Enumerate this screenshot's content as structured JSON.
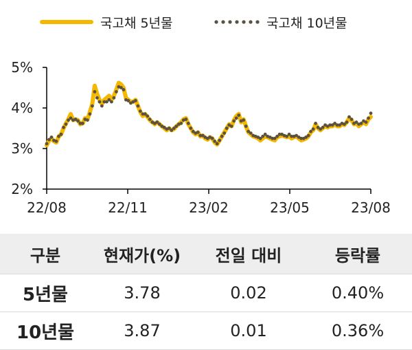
{
  "legend": [
    {
      "name": "국고채 5년물",
      "style": "line",
      "color": "#f5b800"
    },
    {
      "name": "국고채 10년물",
      "style": "dots",
      "color": "#5b5141"
    }
  ],
  "chart_data": {
    "type": "line",
    "x_ticks": [
      "22/08",
      "22/11",
      "23/02",
      "23/05",
      "23/08"
    ],
    "y_ticks": [
      "2%",
      "3%",
      "4%",
      "5%"
    ],
    "ylim": [
      2,
      5
    ],
    "series": [
      {
        "name": "국고채 5년물",
        "color": "#f5b800",
        "values": [
          3.08,
          3.2,
          3.25,
          3.18,
          3.15,
          3.3,
          3.35,
          3.5,
          3.62,
          3.72,
          3.85,
          3.7,
          3.72,
          3.7,
          3.6,
          3.62,
          3.75,
          3.72,
          3.9,
          4.1,
          4.55,
          4.35,
          4.2,
          4.1,
          4.2,
          4.25,
          4.3,
          4.2,
          4.3,
          4.45,
          4.62,
          4.58,
          4.5,
          4.25,
          4.2,
          4.15,
          4.15,
          4.2,
          4.05,
          3.9,
          3.8,
          3.85,
          3.78,
          3.7,
          3.65,
          3.6,
          3.65,
          3.6,
          3.55,
          3.5,
          3.45,
          3.5,
          3.45,
          3.48,
          3.55,
          3.6,
          3.65,
          3.72,
          3.75,
          3.6,
          3.5,
          3.4,
          3.35,
          3.4,
          3.3,
          3.32,
          3.25,
          3.22,
          3.28,
          3.25,
          3.15,
          3.1,
          3.2,
          3.3,
          3.4,
          3.5,
          3.6,
          3.55,
          3.7,
          3.8,
          3.85,
          3.65,
          3.72,
          3.55,
          3.4,
          3.35,
          3.3,
          3.28,
          3.25,
          3.2,
          3.25,
          3.3,
          3.28,
          3.25,
          3.22,
          3.2,
          3.28,
          3.3,
          3.32,
          3.3,
          3.28,
          3.3,
          3.25,
          3.28,
          3.3,
          3.25,
          3.2,
          3.22,
          3.25,
          3.3,
          3.4,
          3.45,
          3.6,
          3.5,
          3.45,
          3.5,
          3.55,
          3.52,
          3.55,
          3.55,
          3.6,
          3.55,
          3.55,
          3.6,
          3.58,
          3.65,
          3.75,
          3.7,
          3.6,
          3.62,
          3.55,
          3.6,
          3.65,
          3.6,
          3.72,
          3.78
        ]
      },
      {
        "name": "국고채 10년물",
        "color": "#5b5141",
        "values": [
          3.12,
          3.22,
          3.28,
          3.2,
          3.18,
          3.3,
          3.35,
          3.52,
          3.6,
          3.7,
          3.75,
          3.7,
          3.72,
          3.68,
          3.62,
          3.62,
          3.72,
          3.7,
          3.85,
          4.05,
          4.4,
          4.25,
          4.15,
          4.05,
          4.15,
          4.15,
          4.2,
          4.15,
          4.25,
          4.4,
          4.52,
          4.5,
          4.45,
          4.2,
          4.18,
          4.12,
          4.15,
          4.18,
          4.05,
          3.92,
          3.85,
          3.85,
          3.8,
          3.72,
          3.65,
          3.62,
          3.65,
          3.6,
          3.55,
          3.52,
          3.48,
          3.5,
          3.45,
          3.5,
          3.55,
          3.6,
          3.62,
          3.7,
          3.72,
          3.62,
          3.5,
          3.42,
          3.38,
          3.4,
          3.32,
          3.32,
          3.28,
          3.25,
          3.28,
          3.25,
          3.18,
          3.12,
          3.2,
          3.3,
          3.38,
          3.5,
          3.58,
          3.55,
          3.68,
          3.75,
          3.82,
          3.68,
          3.7,
          3.55,
          3.42,
          3.38,
          3.32,
          3.3,
          3.28,
          3.25,
          3.3,
          3.35,
          3.3,
          3.28,
          3.25,
          3.25,
          3.3,
          3.35,
          3.35,
          3.32,
          3.3,
          3.35,
          3.3,
          3.3,
          3.32,
          3.28,
          3.25,
          3.25,
          3.28,
          3.32,
          3.42,
          3.48,
          3.62,
          3.52,
          3.48,
          3.52,
          3.58,
          3.55,
          3.58,
          3.58,
          3.62,
          3.58,
          3.58,
          3.62,
          3.6,
          3.65,
          3.78,
          3.72,
          3.62,
          3.65,
          3.6,
          3.62,
          3.68,
          3.65,
          3.75,
          3.87
        ]
      }
    ]
  },
  "table": {
    "headers": [
      "구분",
      "현재가(%)",
      "전일 대비",
      "등락률"
    ],
    "rows": [
      [
        "5년물",
        "3.78",
        "0.02",
        "0.40%"
      ],
      [
        "10년물",
        "3.87",
        "0.01",
        "0.36%"
      ]
    ]
  }
}
